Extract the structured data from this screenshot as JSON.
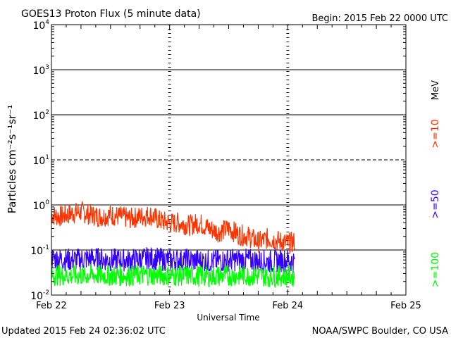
{
  "header": {
    "title": "GOES13 Proton Flux (5 minute data)",
    "begin": "Begin: 2015 Feb 22 0000 UTC"
  },
  "footer": {
    "updated": "Updated 2015 Feb 24 02:36:02 UTC",
    "credit": "NOAA/SWPC Boulder, CO USA"
  },
  "chart_data": {
    "type": "line",
    "title": "GOES13 Proton Flux (5 minute data)",
    "xlabel": "Universal Time",
    "ylabel": "Particles cm⁻²s⁻¹sr⁻¹",
    "y_scale": "log",
    "ylim": [
      0.01,
      10000
    ],
    "xlim": [
      0,
      72
    ],
    "x_unit": "hours since 2015 Feb 22 0000 UTC",
    "x_ticks": [
      {
        "label": "Feb 22",
        "value": 0
      },
      {
        "label": "Feb 23",
        "value": 24
      },
      {
        "label": "Feb 24",
        "value": 48
      },
      {
        "label": "Feb 25",
        "value": 72
      }
    ],
    "y_ticks": [
      {
        "base": "10",
        "exp": "-2",
        "value": 0.01
      },
      {
        "base": "10",
        "exp": "-1",
        "value": 0.1
      },
      {
        "base": "10",
        "exp": "0",
        "value": 1
      },
      {
        "base": "10",
        "exp": "1",
        "value": 10
      },
      {
        "base": "10",
        "exp": "2",
        "value": 100
      },
      {
        "base": "10",
        "exp": "3",
        "value": 1000
      },
      {
        "base": "10",
        "exp": "4",
        "value": 10000
      }
    ],
    "threshold_lines": [
      10,
      100,
      1000
    ],
    "dashed_lines": [
      10
    ],
    "unit_label": "MeV",
    "series": [
      {
        "name": ">=10",
        "color": "#ff3300",
        "x": [
          0,
          2,
          4,
          6,
          8,
          10,
          12,
          14,
          16,
          18,
          20,
          22,
          24,
          26,
          28,
          30,
          32,
          34,
          36,
          38,
          40,
          42,
          44,
          46,
          48,
          49.4
        ],
        "values": [
          0.6,
          0.55,
          0.65,
          0.7,
          0.6,
          0.55,
          0.6,
          0.55,
          0.5,
          0.55,
          0.6,
          0.45,
          0.4,
          0.4,
          0.35,
          0.4,
          0.3,
          0.25,
          0.3,
          0.22,
          0.2,
          0.15,
          0.18,
          0.16,
          0.14,
          0.15
        ]
      },
      {
        "name": ">=50",
        "color": "#3300ff",
        "x": [
          0,
          4,
          8,
          12,
          16,
          20,
          24,
          28,
          32,
          36,
          40,
          44,
          48,
          49.4
        ],
        "values": [
          0.065,
          0.06,
          0.065,
          0.06,
          0.06,
          0.065,
          0.06,
          0.06,
          0.055,
          0.06,
          0.06,
          0.055,
          0.06,
          0.055
        ]
      },
      {
        "name": ">=100",
        "color": "#00ff00",
        "x": [
          0,
          4,
          8,
          12,
          16,
          20,
          24,
          28,
          32,
          36,
          40,
          44,
          48,
          49.4
        ],
        "values": [
          0.028,
          0.027,
          0.028,
          0.027,
          0.027,
          0.028,
          0.027,
          0.027,
          0.026,
          0.027,
          0.027,
          0.026,
          0.027,
          0.026
        ]
      }
    ]
  }
}
